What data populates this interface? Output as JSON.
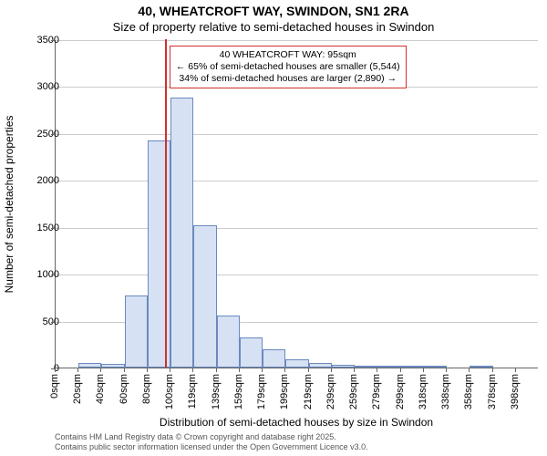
{
  "titles": {
    "line1": "40, WHEATCROFT WAY, SWINDON, SN1 2RA",
    "line2": "Size of property relative to semi-detached houses in Swindon"
  },
  "chart": {
    "type": "histogram",
    "ylabel": "Number of semi-detached properties",
    "xlabel": "Distribution of semi-detached houses by size in Swindon",
    "ylim": [
      0,
      3500
    ],
    "yticks": [
      0,
      500,
      1000,
      1500,
      2000,
      2500,
      3000,
      3500
    ],
    "xlabels": [
      "0sqm",
      "20sqm",
      "40sqm",
      "60sqm",
      "80sqm",
      "100sqm",
      "119sqm",
      "139sqm",
      "159sqm",
      "179sqm",
      "199sqm",
      "219sqm",
      "239sqm",
      "259sqm",
      "279sqm",
      "299sqm",
      "318sqm",
      "338sqm",
      "358sqm",
      "378sqm",
      "398sqm"
    ],
    "values": [
      0,
      50,
      40,
      770,
      2420,
      2880,
      1520,
      550,
      320,
      190,
      90,
      50,
      30,
      20,
      10,
      5,
      5,
      0,
      5,
      0,
      0
    ],
    "bar_fill": "#d6e1f3",
    "bar_stroke": "#6a8abf",
    "grid_color": "#cccccc",
    "plot_bg": "#ffffff",
    "vline": {
      "position_index": 4.75,
      "color": "#d03030"
    },
    "annotation": {
      "line1": "40 WHEATCROFT WAY: 95sqm",
      "line2": "← 65% of semi-detached houses are smaller (5,544)",
      "line3": "34% of semi-detached houses are larger (2,890) →",
      "border_color": "#d03030"
    }
  },
  "footer": {
    "line1": "Contains HM Land Registry data © Crown copyright and database right 2025.",
    "line2": "Contains public sector information licensed under the Open Government Licence v3.0."
  }
}
